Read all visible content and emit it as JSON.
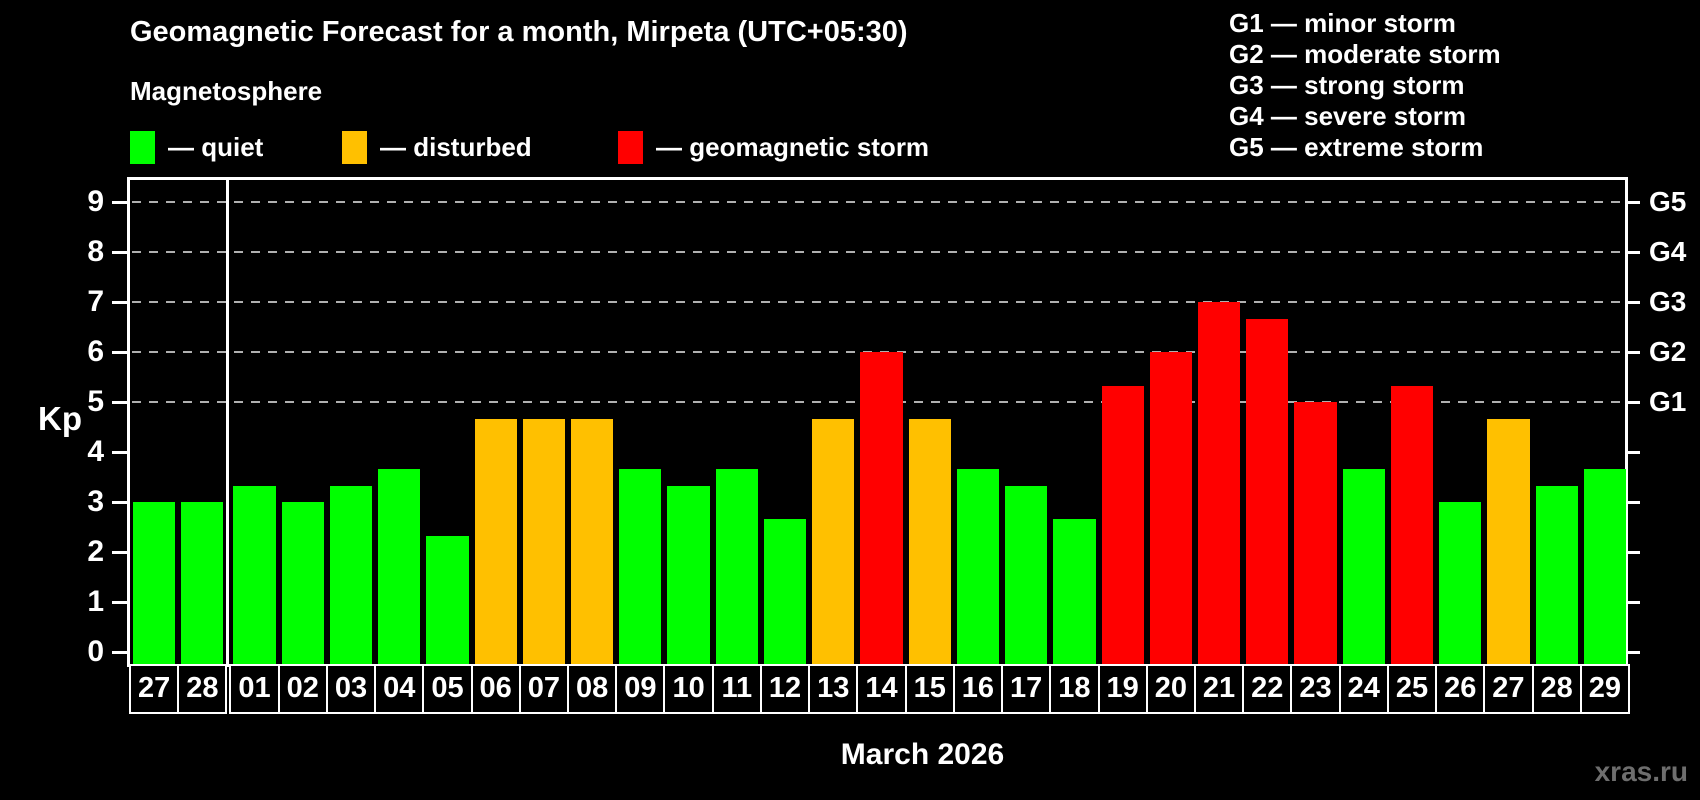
{
  "page": {
    "title": "Geomagnetic Forecast for a month, Mirpeta (UTC+05:30)",
    "subtitle": "Magnetosphere",
    "watermark": "xras.ru"
  },
  "colors": {
    "quiet": "#00ff00",
    "disturbed": "#ffc000",
    "storm": "#ff0000",
    "axis": "#ffffff",
    "grid": "#b0b0b0",
    "background": "#000000",
    "watermark_text": "#6e6e6e"
  },
  "legend": {
    "items": [
      {
        "status": "quiet",
        "label": "— quiet"
      },
      {
        "status": "disturbed",
        "label": "— disturbed"
      },
      {
        "status": "storm",
        "label": "— geomagnetic storm"
      }
    ]
  },
  "g_legend": [
    "G1 — minor storm",
    "G2 — moderate storm",
    "G3 — strong storm",
    "G4 — severe storm",
    "G5 — extreme storm"
  ],
  "chart_data": {
    "type": "bar",
    "title": "Geomagnetic Forecast for a month, Mirpeta (UTC+05:30)",
    "xlabel": "March 2026",
    "ylabel": "Kp",
    "ylim": [
      -0.3,
      9.44
    ],
    "y_ticks": [
      0,
      1,
      2,
      3,
      4,
      5,
      6,
      7,
      8,
      9
    ],
    "gridlines_at": [
      5,
      6,
      7,
      8,
      9
    ],
    "right_axis_labels": {
      "5": "G1",
      "6": "G2",
      "7": "G3",
      "8": "G4",
      "9": "G5"
    },
    "month_separator_before_index": 2,
    "points": [
      {
        "day": "27",
        "kp": 3.0,
        "status": "quiet"
      },
      {
        "day": "28",
        "kp": 3.0,
        "status": "quiet"
      },
      {
        "day": "01",
        "kp": 3.33,
        "status": "quiet"
      },
      {
        "day": "02",
        "kp": 3.0,
        "status": "quiet"
      },
      {
        "day": "03",
        "kp": 3.33,
        "status": "quiet"
      },
      {
        "day": "04",
        "kp": 3.67,
        "status": "quiet"
      },
      {
        "day": "05",
        "kp": 2.33,
        "status": "quiet"
      },
      {
        "day": "06",
        "kp": 4.67,
        "status": "disturbed"
      },
      {
        "day": "07",
        "kp": 4.67,
        "status": "disturbed"
      },
      {
        "day": "08",
        "kp": 4.67,
        "status": "disturbed"
      },
      {
        "day": "09",
        "kp": 3.67,
        "status": "quiet"
      },
      {
        "day": "10",
        "kp": 3.33,
        "status": "quiet"
      },
      {
        "day": "11",
        "kp": 3.67,
        "status": "quiet"
      },
      {
        "day": "12",
        "kp": 2.67,
        "status": "quiet"
      },
      {
        "day": "13",
        "kp": 4.67,
        "status": "disturbed"
      },
      {
        "day": "14",
        "kp": 6.0,
        "status": "storm"
      },
      {
        "day": "15",
        "kp": 4.67,
        "status": "disturbed"
      },
      {
        "day": "16",
        "kp": 3.67,
        "status": "quiet"
      },
      {
        "day": "17",
        "kp": 3.33,
        "status": "quiet"
      },
      {
        "day": "18",
        "kp": 2.67,
        "status": "quiet"
      },
      {
        "day": "19",
        "kp": 5.33,
        "status": "storm"
      },
      {
        "day": "20",
        "kp": 6.0,
        "status": "storm"
      },
      {
        "day": "21",
        "kp": 7.0,
        "status": "storm"
      },
      {
        "day": "22",
        "kp": 6.67,
        "status": "storm"
      },
      {
        "day": "23",
        "kp": 5.0,
        "status": "storm"
      },
      {
        "day": "24",
        "kp": 3.67,
        "status": "quiet"
      },
      {
        "day": "25",
        "kp": 5.33,
        "status": "storm"
      },
      {
        "day": "26",
        "kp": 3.0,
        "status": "quiet"
      },
      {
        "day": "27",
        "kp": 4.67,
        "status": "disturbed"
      },
      {
        "day": "28",
        "kp": 3.33,
        "status": "quiet"
      },
      {
        "day": "29",
        "kp": 3.67,
        "status": "quiet"
      }
    ]
  }
}
